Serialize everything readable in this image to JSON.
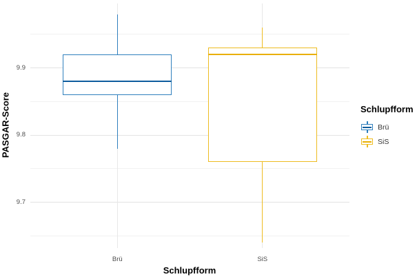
{
  "figure": {
    "background": "#ffffff",
    "grid_major_color": "#e3e3e3",
    "grid_minor_color": "#f1f1f1"
  },
  "chart_data": {
    "type": "boxplot",
    "title": "",
    "xlabel": "Schlupfform",
    "ylabel": "PASGAR-Score",
    "categories": [
      "Brü",
      "SiS"
    ],
    "series": [
      {
        "name": "Brü",
        "color": "#2e7fbd",
        "median_color": "#0d5c9d",
        "min": 9.78,
        "q1": 9.86,
        "median": 9.88,
        "q3": 9.92,
        "max": 9.98
      },
      {
        "name": "SiS",
        "color": "#eebc20",
        "median_color": "#e9af00",
        "min": 9.64,
        "q1": 9.76,
        "median": 9.92,
        "q3": 9.93,
        "max": 9.96
      }
    ],
    "y_major_ticks": [
      9.9,
      9.8,
      9.7
    ],
    "y_minor_ticks": [
      9.95,
      9.85,
      9.75,
      9.65
    ],
    "ylim": [
      9.632,
      9.996
    ],
    "grid": true,
    "legend": {
      "title": "Schlupfform",
      "position": "right",
      "entries": [
        "Brü",
        "SiS"
      ]
    }
  },
  "axes": {
    "tick_label_color": "#4d4d4d",
    "title_color": "#000000"
  }
}
